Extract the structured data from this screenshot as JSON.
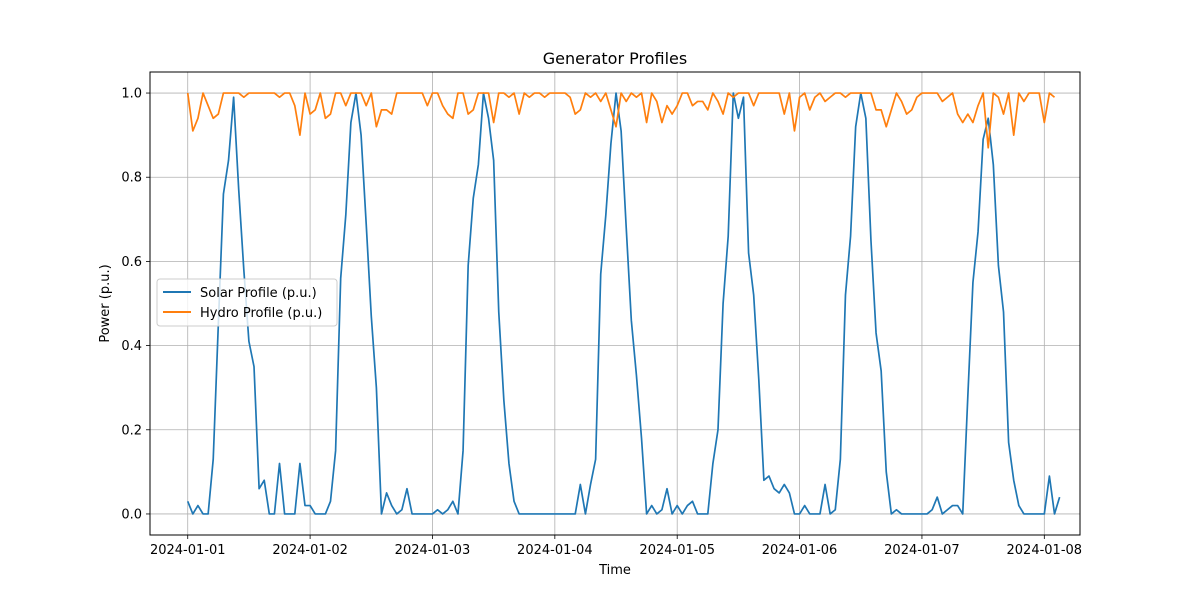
{
  "chart_data": {
    "type": "line",
    "title": "Generator Profiles",
    "xlabel": "Time",
    "ylabel": "Power (p.u.)",
    "x_ticks": [
      "2024-01-01",
      "2024-01-02",
      "2024-01-03",
      "2024-01-04",
      "2024-01-05",
      "2024-01-06",
      "2024-01-07",
      "2024-01-08"
    ],
    "y_ticks": [
      "0.0",
      "0.2",
      "0.4",
      "0.6",
      "0.8",
      "1.0"
    ],
    "xlim": [
      "2023-12-31T16:36",
      "2024-01-08T07:00"
    ],
    "ylim": [
      -0.05,
      1.05
    ],
    "grid": true,
    "legend_position": "center-left",
    "x_start": "2024-01-01T00:00",
    "x_step_hours": 1,
    "series": [
      {
        "name": "Solar Profile (p.u.)",
        "color": "#1f77b4",
        "values": [
          0.03,
          0.0,
          0.02,
          0.0,
          0.0,
          0.13,
          0.45,
          0.76,
          0.84,
          0.99,
          0.77,
          0.58,
          0.41,
          0.35,
          0.06,
          0.08,
          0.0,
          0.0,
          0.12,
          0.0,
          0.0,
          0.0,
          0.12,
          0.02,
          0.02,
          0.0,
          0.0,
          0.0,
          0.03,
          0.15,
          0.56,
          0.71,
          0.93,
          1.0,
          0.9,
          0.69,
          0.47,
          0.3,
          0.0,
          0.05,
          0.02,
          0.0,
          0.01,
          0.06,
          0.0,
          0.0,
          0.0,
          0.0,
          0.0,
          0.01,
          0.0,
          0.01,
          0.03,
          0.0,
          0.15,
          0.59,
          0.75,
          0.83,
          1.0,
          0.94,
          0.84,
          0.48,
          0.27,
          0.12,
          0.03,
          0.0,
          0.0,
          0.0,
          0.0,
          0.0,
          0.0,
          0.0,
          0.0,
          0.0,
          0.0,
          0.0,
          0.0,
          0.07,
          0.0,
          0.07,
          0.13,
          0.57,
          0.71,
          0.88,
          1.0,
          0.91,
          0.68,
          0.46,
          0.33,
          0.18,
          0.0,
          0.02,
          0.0,
          0.01,
          0.06,
          0.0,
          0.02,
          0.0,
          0.02,
          0.03,
          0.0,
          0.0,
          0.0,
          0.12,
          0.2,
          0.5,
          0.66,
          1.0,
          0.94,
          0.99,
          0.62,
          0.52,
          0.32,
          0.08,
          0.09,
          0.06,
          0.05,
          0.07,
          0.05,
          0.0,
          0.0,
          0.02,
          0.0,
          0.0,
          0.0,
          0.07,
          0.0,
          0.01,
          0.13,
          0.52,
          0.66,
          0.92,
          1.0,
          0.94,
          0.65,
          0.43,
          0.34,
          0.1,
          0.0,
          0.01,
          0.0,
          0.0,
          0.0,
          0.0,
          0.0,
          0.0,
          0.01,
          0.04,
          0.0,
          0.01,
          0.02,
          0.02,
          0.0,
          0.28,
          0.55,
          0.67,
          0.89,
          0.94,
          0.83,
          0.59,
          0.48,
          0.17,
          0.08,
          0.02,
          0.0,
          0.0,
          0.0,
          0.0,
          0.0,
          0.09,
          0.0,
          0.04
        ]
      },
      {
        "name": "Hydro Profile (p.u.)",
        "color": "#ff7f0e",
        "values": [
          1.0,
          0.91,
          0.94,
          1.0,
          0.97,
          0.94,
          0.95,
          1.0,
          1.0,
          1.0,
          1.0,
          0.99,
          1.0,
          1.0,
          1.0,
          1.0,
          1.0,
          1.0,
          0.99,
          1.0,
          1.0,
          0.97,
          0.9,
          1.0,
          0.95,
          0.96,
          1.0,
          0.94,
          0.95,
          1.0,
          1.0,
          0.97,
          1.0,
          1.0,
          1.0,
          0.97,
          1.0,
          0.92,
          0.96,
          0.96,
          0.95,
          1.0,
          1.0,
          1.0,
          1.0,
          1.0,
          1.0,
          0.97,
          1.0,
          1.0,
          0.97,
          0.95,
          0.94,
          1.0,
          1.0,
          0.95,
          0.96,
          1.0,
          1.0,
          1.0,
          0.93,
          1.0,
          1.0,
          0.99,
          1.0,
          0.95,
          1.0,
          0.99,
          1.0,
          1.0,
          0.99,
          1.0,
          1.0,
          1.0,
          1.0,
          0.99,
          0.95,
          0.96,
          1.0,
          0.99,
          1.0,
          0.98,
          1.0,
          0.96,
          0.92,
          1.0,
          0.98,
          1.0,
          0.99,
          1.0,
          0.93,
          1.0,
          0.98,
          0.93,
          0.97,
          0.95,
          0.97,
          1.0,
          1.0,
          0.97,
          0.98,
          0.98,
          0.96,
          1.0,
          0.98,
          0.95,
          1.0,
          0.99,
          1.0,
          1.0,
          1.0,
          0.97,
          1.0,
          1.0,
          1.0,
          1.0,
          1.0,
          0.95,
          1.0,
          0.91,
          0.99,
          1.0,
          0.96,
          0.99,
          1.0,
          0.98,
          0.99,
          1.0,
          1.0,
          0.99,
          1.0,
          1.0,
          1.0,
          1.0,
          1.0,
          0.96,
          0.96,
          0.92,
          0.96,
          1.0,
          0.98,
          0.95,
          0.96,
          0.99,
          1.0,
          1.0,
          1.0,
          1.0,
          0.98,
          0.99,
          1.0,
          0.95,
          0.93,
          0.95,
          0.93,
          0.97,
          1.0,
          0.87,
          1.0,
          0.99,
          0.95,
          1.0,
          0.9,
          1.0,
          0.98,
          1.0,
          1.0,
          1.0,
          0.93,
          1.0,
          0.99
        ]
      }
    ]
  }
}
